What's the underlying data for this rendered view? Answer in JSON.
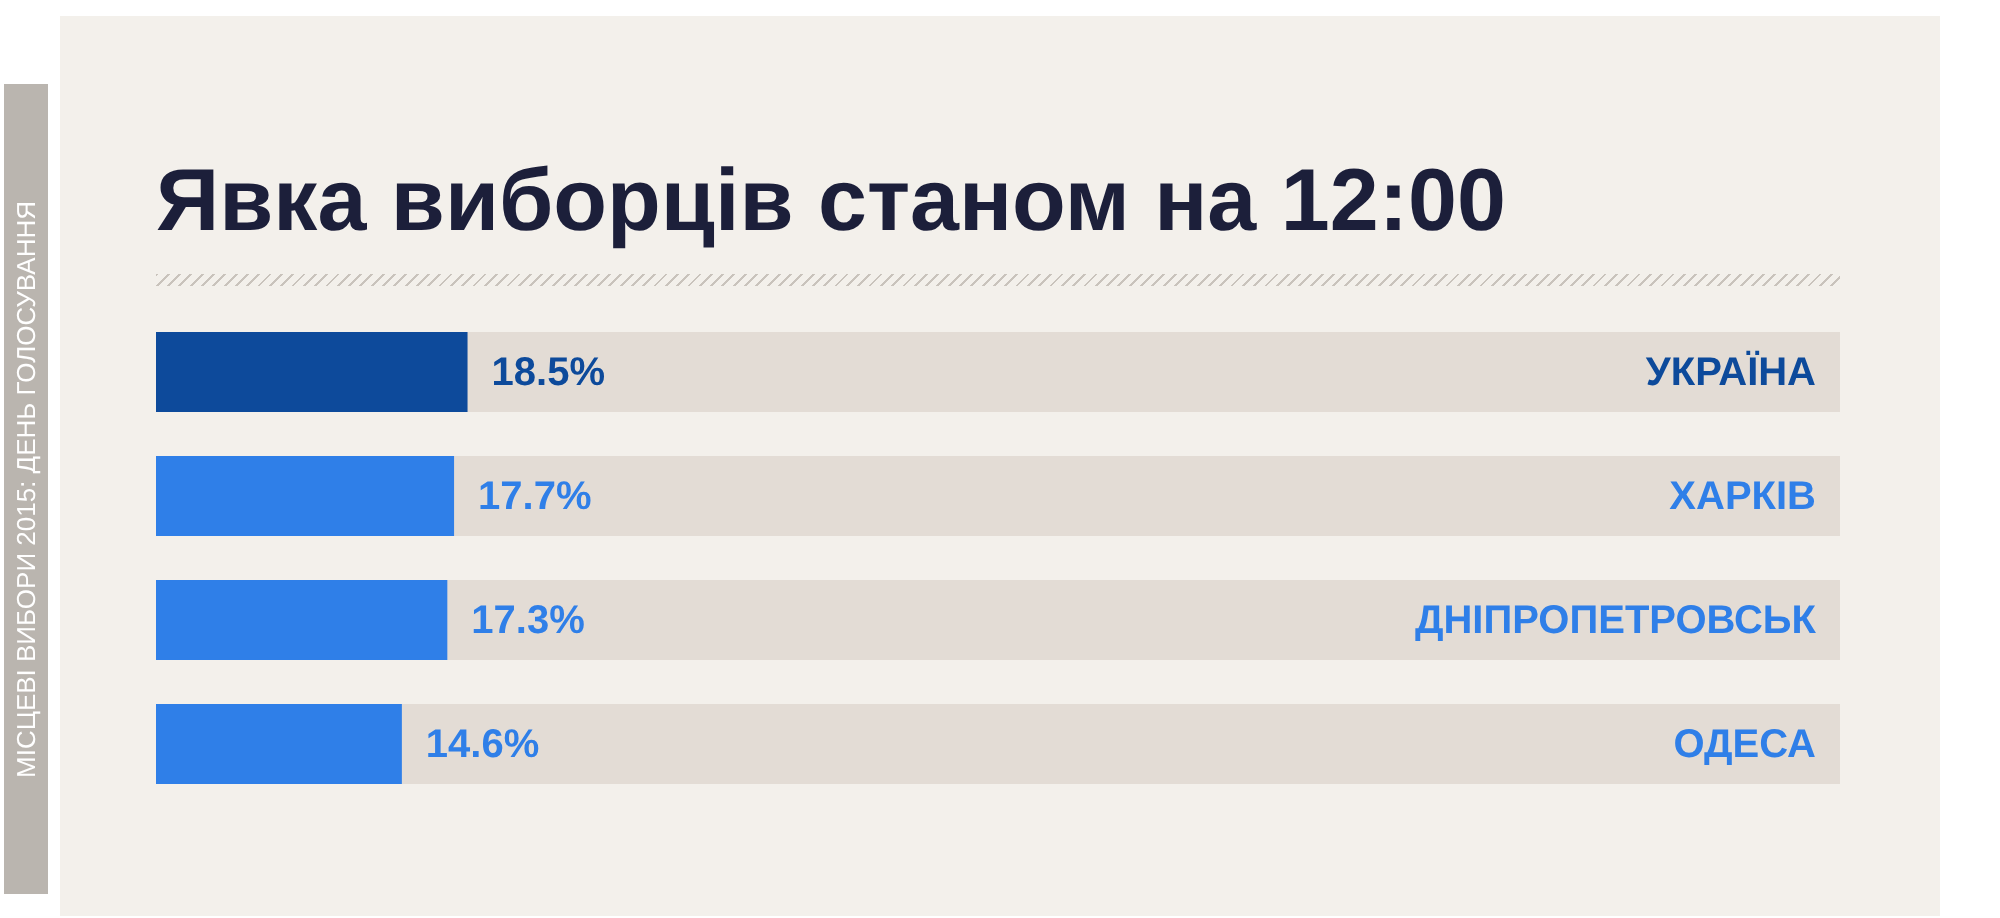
{
  "chart_data": {
    "type": "bar",
    "orientation": "horizontal",
    "title": "Явка виборців станом на 12:00",
    "categories": [
      "УКРАЇНА",
      "ХАРКІВ",
      "ДНІПРОПЕТРОВСЬК",
      "ОДЕСА"
    ],
    "values": [
      18.5,
      17.7,
      17.3,
      14.6
    ],
    "value_labels": [
      "18.5%",
      "17.7%",
      "17.3%",
      "14.6%"
    ],
    "colors": [
      "#0d4a9b",
      "#2f7fe8",
      "#2f7fe8",
      "#2f7fe8"
    ],
    "xlim": [
      0,
      100
    ],
    "tick_labels": false,
    "legend": false,
    "annotations": [
      "МІСЦЕВІ ВИБОРИ 2015: ДЕНЬ ГОЛОСУВАННЯ"
    ]
  }
}
